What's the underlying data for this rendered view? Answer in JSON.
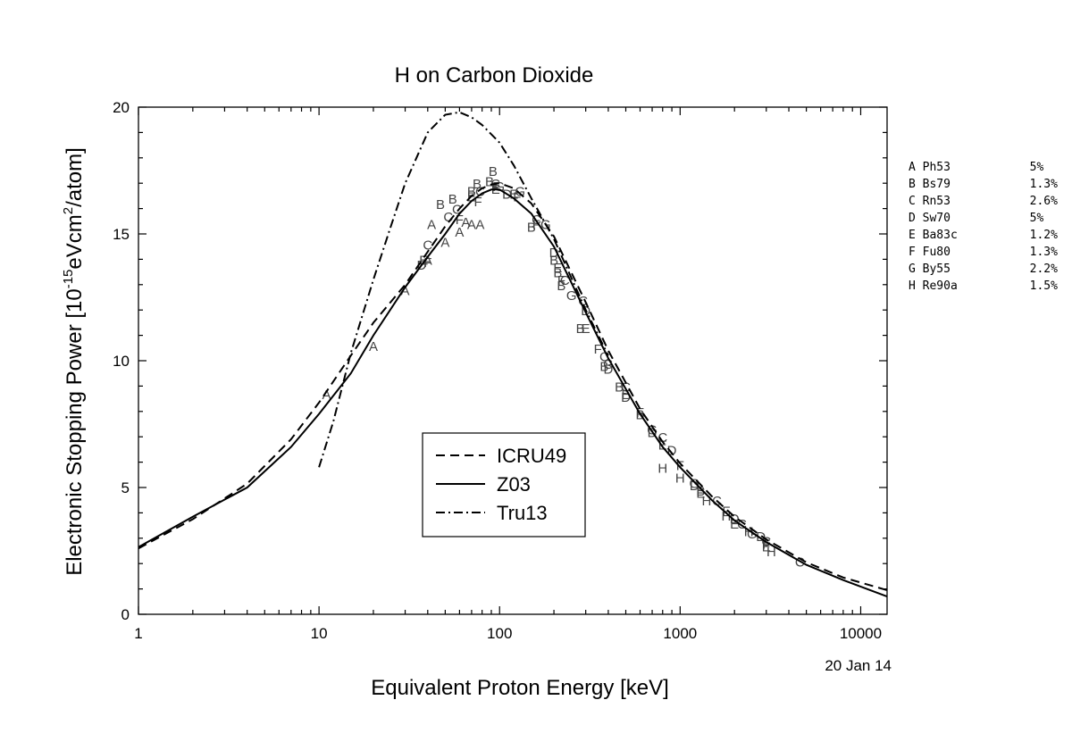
{
  "chart_data": {
    "type": "line",
    "title": "H on Carbon Dioxide",
    "xlabel": "Equivalent Proton Energy [keV]",
    "ylabel": "Electronic Stopping Power [10^-15 eVcm^2/atom]",
    "ylabel_parts": {
      "main": "Electronic Stopping Power [10",
      "exp1": "-15",
      "mid": "eVcm",
      "exp2": "2",
      "end": "/atom]"
    },
    "xscale": "log",
    "xlim": [
      1,
      14000
    ],
    "ylim": [
      0,
      20
    ],
    "xticks": [
      1,
      10,
      100,
      1000,
      10000
    ],
    "xtick_labels": [
      "1",
      "10",
      "100",
      "1000",
      "10000"
    ],
    "yticks": [
      0,
      5,
      10,
      15,
      20
    ],
    "ytick_labels": [
      "0",
      "5",
      "10",
      "15",
      "20"
    ],
    "grid": false,
    "legend": {
      "position": "center",
      "entries": [
        "ICRU49",
        "Z03",
        "Tru13"
      ]
    },
    "series": [
      {
        "name": "ICRU49",
        "style": "dashed",
        "x": [
          1,
          2,
          4,
          7,
          10,
          15,
          20,
          30,
          40,
          50,
          60,
          70,
          80,
          90,
          100,
          120,
          150,
          200,
          300,
          400,
          600,
          800,
          1000,
          1500,
          2000,
          3000,
          5000,
          8000,
          14000
        ],
        "y": [
          2.6,
          3.75,
          5.15,
          6.9,
          8.35,
          10.2,
          11.5,
          13.0,
          14.3,
          15.3,
          16.0,
          16.5,
          16.8,
          16.95,
          17.0,
          16.8,
          16.2,
          14.9,
          12.3,
          10.4,
          8.1,
          6.8,
          5.95,
          4.65,
          3.85,
          2.95,
          2.05,
          1.45,
          0.95
        ]
      },
      {
        "name": "Z03",
        "style": "solid",
        "x": [
          1,
          2,
          4,
          7,
          10,
          15,
          20,
          30,
          40,
          50,
          60,
          70,
          80,
          90,
          100,
          120,
          150,
          200,
          300,
          400,
          600,
          800,
          1000,
          1500,
          2000,
          3000,
          5000,
          8000,
          14000
        ],
        "y": [
          2.65,
          3.85,
          5.0,
          6.6,
          7.9,
          9.5,
          11.0,
          12.9,
          14.1,
          15.0,
          15.8,
          16.3,
          16.6,
          16.75,
          16.75,
          16.4,
          15.8,
          14.5,
          11.9,
          10.1,
          7.9,
          6.6,
          5.8,
          4.5,
          3.7,
          2.85,
          1.95,
          1.35,
          0.7
        ]
      },
      {
        "name": "Tru13",
        "style": "dashdot",
        "x": [
          10,
          12,
          15,
          20,
          25,
          30,
          40,
          50,
          60,
          70,
          80,
          100,
          120,
          150,
          200,
          300,
          400
        ],
        "y": [
          5.8,
          7.6,
          10.3,
          13.2,
          15.3,
          17.0,
          19.0,
          19.7,
          19.8,
          19.6,
          19.3,
          18.6,
          17.7,
          16.4,
          14.8,
          12.0,
          10.2
        ]
      }
    ],
    "measurements": [
      {
        "label": "A",
        "points": [
          [
            11,
            8.7
          ],
          [
            20,
            10.6
          ],
          [
            30,
            12.8
          ],
          [
            40,
            14.0
          ],
          [
            42,
            15.4
          ],
          [
            50,
            14.7
          ],
          [
            60,
            15.1
          ],
          [
            65,
            15.5
          ],
          [
            70,
            15.4
          ],
          [
            78,
            15.4
          ]
        ]
      },
      {
        "label": "B",
        "points": [
          [
            47,
            16.2
          ],
          [
            55,
            16.4
          ],
          [
            70,
            16.7
          ],
          [
            75,
            17.0
          ],
          [
            88,
            17.1
          ],
          [
            92,
            17.5
          ],
          [
            150,
            15.3
          ],
          [
            200,
            14.0
          ],
          [
            210,
            13.5
          ],
          [
            220,
            13.0
          ],
          [
            280,
            11.3
          ],
          [
            380,
            9.8
          ],
          [
            460,
            9.0
          ],
          [
            600,
            7.9
          ],
          [
            1300,
            4.9
          ]
        ]
      },
      {
        "label": "C",
        "points": [
          [
            40,
            14.6
          ],
          [
            52,
            15.7
          ],
          [
            58,
            16.0
          ],
          [
            78,
            16.7
          ],
          [
            95,
            17.0
          ],
          [
            160,
            15.6
          ],
          [
            230,
            13.2
          ],
          [
            290,
            12.4
          ],
          [
            380,
            10.2
          ],
          [
            500,
            9.0
          ],
          [
            800,
            7.0
          ],
          [
            1600,
            4.5
          ],
          [
            2200,
            3.6
          ],
          [
            3000,
            2.9
          ],
          [
            4600,
            2.1
          ]
        ]
      },
      {
        "label": "D",
        "points": [
          [
            37,
            13.8
          ],
          [
            110,
            16.6
          ],
          [
            200,
            14.3
          ],
          [
            300,
            12.0
          ],
          [
            400,
            9.7
          ],
          [
            500,
            8.6
          ],
          [
            700,
            7.2
          ],
          [
            900,
            6.5
          ],
          [
            1200,
            5.1
          ],
          [
            2000,
            3.8
          ],
          [
            2800,
            3.1
          ]
        ]
      },
      {
        "label": "E",
        "points": [
          [
            38,
            14.0
          ],
          [
            70,
            16.5
          ],
          [
            95,
            16.8
          ],
          [
            120,
            16.6
          ],
          [
            210,
            13.7
          ],
          [
            300,
            11.3
          ],
          [
            500,
            8.7
          ],
          [
            800,
            6.7
          ],
          [
            1300,
            4.8
          ],
          [
            2000,
            3.6
          ],
          [
            3000,
            2.7
          ]
        ]
      },
      {
        "label": "F",
        "points": [
          [
            40,
            13.9
          ],
          [
            60,
            15.6
          ],
          [
            76,
            16.3
          ],
          [
            96,
            16.9
          ],
          [
            125,
            16.5
          ],
          [
            160,
            15.4
          ],
          [
            220,
            13.2
          ],
          [
            350,
            10.5
          ],
          [
            600,
            8.0
          ],
          [
            1000,
            5.9
          ],
          [
            1800,
            4.1
          ],
          [
            3000,
            2.8
          ]
        ]
      },
      {
        "label": "G",
        "points": [
          [
            100,
            16.9
          ],
          [
            130,
            16.7
          ],
          [
            180,
            15.4
          ],
          [
            250,
            12.6
          ],
          [
            400,
            9.9
          ],
          [
            700,
            7.3
          ],
          [
            1200,
            5.2
          ],
          [
            2500,
            3.2
          ]
        ]
      },
      {
        "label": "H",
        "points": [
          [
            800,
            5.8
          ],
          [
            1000,
            5.4
          ],
          [
            1400,
            4.5
          ],
          [
            1800,
            3.9
          ],
          [
            2400,
            3.3
          ],
          [
            3200,
            2.5
          ]
        ]
      }
    ]
  },
  "side_legend": {
    "entries": [
      {
        "letter": "A",
        "code": "Ph53",
        "uncertainty": "5%"
      },
      {
        "letter": "B",
        "code": "Bs79",
        "uncertainty": "1.3%"
      },
      {
        "letter": "C",
        "code": "Rn53",
        "uncertainty": "2.6%"
      },
      {
        "letter": "D",
        "code": "Sw70",
        "uncertainty": "5%"
      },
      {
        "letter": "E",
        "code": "Ba83c",
        "uncertainty": "1.2%"
      },
      {
        "letter": "F",
        "code": "Fu80",
        "uncertainty": "1.3%"
      },
      {
        "letter": "G",
        "code": "By55",
        "uncertainty": "2.2%"
      },
      {
        "letter": "H",
        "code": "Re90a",
        "uncertainty": "1.5%"
      }
    ]
  },
  "stamp": "20 Jan 14"
}
